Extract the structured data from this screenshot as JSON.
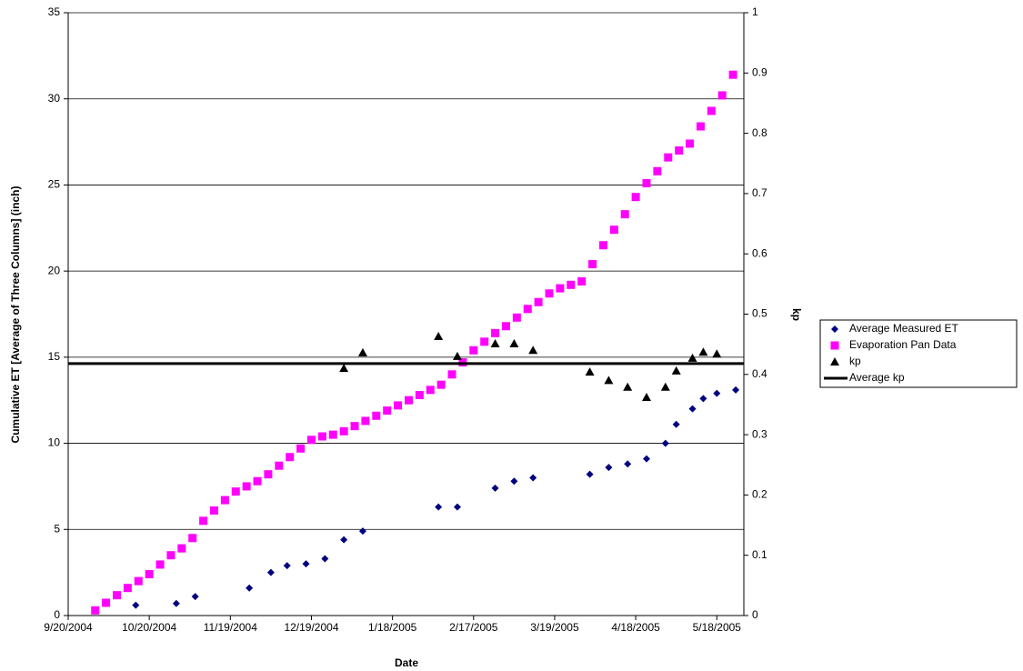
{
  "chart_data": {
    "type": "scatter",
    "xlabel": "Date",
    "ylabel": "Cumulative ET [Average of Three Columns] (inch)",
    "y2label": "kp",
    "xlim": [
      "2004-09-20",
      "2005-05-28"
    ],
    "xticks": [
      {
        "value": "2004-09-20",
        "label": "9/20/2004"
      },
      {
        "value": "2004-10-20",
        "label": "10/20/2004"
      },
      {
        "value": "2004-11-19",
        "label": "11/19/2004"
      },
      {
        "value": "2004-12-19",
        "label": "12/19/2004"
      },
      {
        "value": "2005-01-18",
        "label": "1/18/2005"
      },
      {
        "value": "2005-02-17",
        "label": "2/17/2005"
      },
      {
        "value": "2005-03-19",
        "label": "3/19/2005"
      },
      {
        "value": "2005-04-18",
        "label": "4/18/2005"
      },
      {
        "value": "2005-05-18",
        "label": "5/18/2005"
      }
    ],
    "ylim": [
      0,
      35
    ],
    "yticks": [
      0,
      5,
      10,
      15,
      20,
      25,
      30,
      35
    ],
    "y2lim": [
      0,
      1
    ],
    "y2ticks": [
      0,
      0.1,
      0.2,
      0.3,
      0.4,
      0.5,
      0.6,
      0.7,
      0.8,
      0.9,
      1
    ],
    "grid": true,
    "legend": "right",
    "series": [
      {
        "name": "Average Measured ET",
        "color": "#000080",
        "marker": "diamond",
        "axis": "y",
        "x": [
          "2004-10-15",
          "2004-10-30",
          "2004-11-06",
          "2004-11-26",
          "2004-12-04",
          "2004-12-10",
          "2004-12-17",
          "2004-12-24",
          "2004-12-31",
          "2005-01-07",
          "2005-02-04",
          "2005-02-11",
          "2005-02-25",
          "2005-03-04",
          "2005-03-11",
          "2005-04-01",
          "2005-04-08",
          "2005-04-15",
          "2005-04-22",
          "2005-04-29",
          "2005-05-03",
          "2005-05-09",
          "2005-05-13",
          "2005-05-18",
          "2005-05-25"
        ],
        "values": [
          0.6,
          0.7,
          1.1,
          1.6,
          2.5,
          2.9,
          3.0,
          3.3,
          4.4,
          4.9,
          6.3,
          6.3,
          7.4,
          7.8,
          8.0,
          8.2,
          8.6,
          8.8,
          9.1,
          10.0,
          11.1,
          12.0,
          12.6,
          12.9,
          13.1
        ]
      },
      {
        "name": "Evaporation Pan Data",
        "color": "#ff00ff",
        "marker": "square",
        "axis": "y",
        "x": [
          "2004-09-30",
          "2004-10-04",
          "2004-10-08",
          "2004-10-12",
          "2004-10-16",
          "2004-10-20",
          "2004-10-24",
          "2004-10-28",
          "2004-11-01",
          "2004-11-05",
          "2004-11-09",
          "2004-11-13",
          "2004-11-17",
          "2004-11-21",
          "2004-11-25",
          "2004-11-29",
          "2004-12-03",
          "2004-12-07",
          "2004-12-11",
          "2004-12-15",
          "2004-12-19",
          "2004-12-23",
          "2004-12-27",
          "2004-12-31",
          "2005-01-04",
          "2005-01-08",
          "2005-01-12",
          "2005-01-16",
          "2005-01-20",
          "2005-01-24",
          "2005-01-28",
          "2005-02-01",
          "2005-02-05",
          "2005-02-09",
          "2005-02-13",
          "2005-02-17",
          "2005-02-21",
          "2005-02-25",
          "2005-03-01",
          "2005-03-05",
          "2005-03-09",
          "2005-03-13",
          "2005-03-17",
          "2005-03-21",
          "2005-03-25",
          "2005-03-29",
          "2005-04-02",
          "2005-04-06",
          "2005-04-10",
          "2005-04-14",
          "2005-04-18",
          "2005-04-22",
          "2005-04-26",
          "2005-04-30",
          "2005-05-04",
          "2005-05-08",
          "2005-05-12",
          "2005-05-16",
          "2005-05-20",
          "2005-05-24"
        ],
        "values": [
          0.3,
          0.74,
          1.18,
          1.6,
          2.0,
          2.4,
          2.96,
          3.5,
          3.9,
          4.5,
          5.5,
          6.1,
          6.7,
          7.2,
          7.5,
          7.8,
          8.2,
          8.7,
          9.2,
          9.7,
          10.2,
          10.4,
          10.5,
          10.7,
          11.0,
          11.3,
          11.6,
          11.9,
          12.2,
          12.5,
          12.8,
          13.1,
          13.4,
          14.0,
          14.7,
          15.4,
          15.9,
          16.4,
          16.8,
          17.3,
          17.8,
          18.2,
          18.7,
          19.0,
          19.2,
          19.4,
          20.4,
          21.5,
          22.4,
          23.3,
          24.3,
          25.1,
          25.8,
          26.6,
          27.0,
          27.4,
          28.4,
          29.3,
          30.2,
          31.4
        ]
      },
      {
        "name": "kp",
        "color": "#000000",
        "marker": "triangle",
        "axis": "y2",
        "x": [
          "2004-12-31",
          "2005-01-07",
          "2005-02-04",
          "2005-02-11",
          "2005-02-25",
          "2005-03-04",
          "2005-03-11",
          "2005-04-01",
          "2005-04-08",
          "2005-04-15",
          "2005-04-22",
          "2005-04-29",
          "2005-05-03",
          "2005-05-09",
          "2005-05-13",
          "2005-05-18"
        ],
        "values": [
          0.41,
          0.436,
          0.463,
          0.43,
          0.451,
          0.451,
          0.44,
          0.404,
          0.39,
          0.379,
          0.362,
          0.379,
          0.406,
          0.427,
          0.437,
          0.434
        ]
      },
      {
        "name": "Average kp",
        "color": "#000000",
        "marker": "hline",
        "axis": "y2",
        "value": 0.418
      }
    ]
  }
}
